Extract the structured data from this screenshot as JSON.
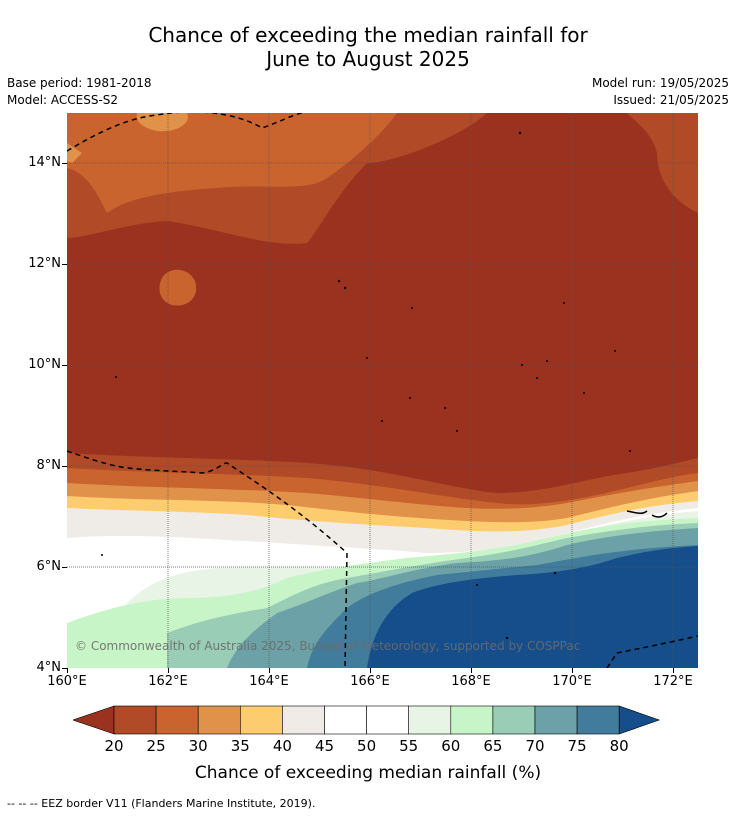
{
  "title": {
    "line1": "Chance of exceeding the median rainfall for",
    "line2": "June to August 2025"
  },
  "meta": {
    "base_period": "Base period: 1981-2018",
    "model": "Model: ACCESS-S2",
    "model_run": "Model run: 19/05/2025",
    "issued": "Issued: 21/05/2025"
  },
  "map": {
    "lat_labels": [
      "14°N",
      "12°N",
      "10°N",
      "8°N",
      "6°N",
      "4°N"
    ],
    "lon_labels": [
      "160°E",
      "162°E",
      "164°E",
      "166°E",
      "168°E",
      "170°E",
      "172°E"
    ],
    "copyright": "© Commonwealth of Australia 2025, Bureau of Meteorology, supported by COSPPac"
  },
  "colorbar": {
    "labels": [
      "20",
      "25",
      "30",
      "35",
      "40",
      "45",
      "50",
      "55",
      "60",
      "65",
      "70",
      "75",
      "80"
    ],
    "colors": [
      "#9b3220",
      "#b14a26",
      "#c9642f",
      "#e0924a",
      "#fdcc6e",
      "#efebe6",
      "#ffffff",
      "#ffffff",
      "#e8f4e6",
      "#c8f5c8",
      "#99cdb6",
      "#6ca2a7",
      "#427c9d",
      "#154e8b"
    ],
    "title": "Chance of exceeding median rainfall (%)"
  },
  "legend_note": "--  --  -- EEZ border V11 (Flanders Marine Institute, 2019)."
}
